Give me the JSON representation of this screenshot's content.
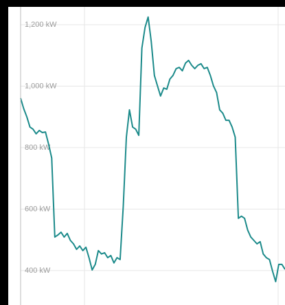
{
  "chart_data": {
    "type": "line",
    "values": [
      961,
      927,
      900,
      867,
      860,
      845,
      856,
      849,
      851,
      811,
      766,
      509,
      516,
      525,
      509,
      521,
      498,
      487,
      469,
      480,
      465,
      476,
      442,
      402,
      420,
      465,
      454,
      458,
      442,
      449,
      425,
      442,
      436,
      610,
      834,
      923,
      867,
      860,
      840,
      1124,
      1191,
      1225,
      1146,
      1035,
      1001,
      968,
      994,
      990,
      1023,
      1035,
      1057,
      1061,
      1050,
      1075,
      1084,
      1068,
      1057,
      1068,
      1073,
      1057,
      1061,
      1035,
      1001,
      979,
      923,
      912,
      889,
      889,
      867,
      834,
      570,
      577,
      570,
      532,
      509,
      498,
      487,
      494,
      454,
      442,
      436,
      398,
      364,
      420,
      420,
      404
    ],
    "color": "#1b8a8a",
    "ylim": [
      288,
      1258
    ],
    "yticks": [
      {
        "value": 400,
        "label": "400 kW"
      },
      {
        "value": 600,
        "label": "600 kW"
      },
      {
        "value": 800,
        "label": "800 kW"
      },
      {
        "value": 1000,
        "label": "1,000 kW"
      },
      {
        "value": 1200,
        "label": "1,200 kW"
      }
    ],
    "grid": true
  }
}
